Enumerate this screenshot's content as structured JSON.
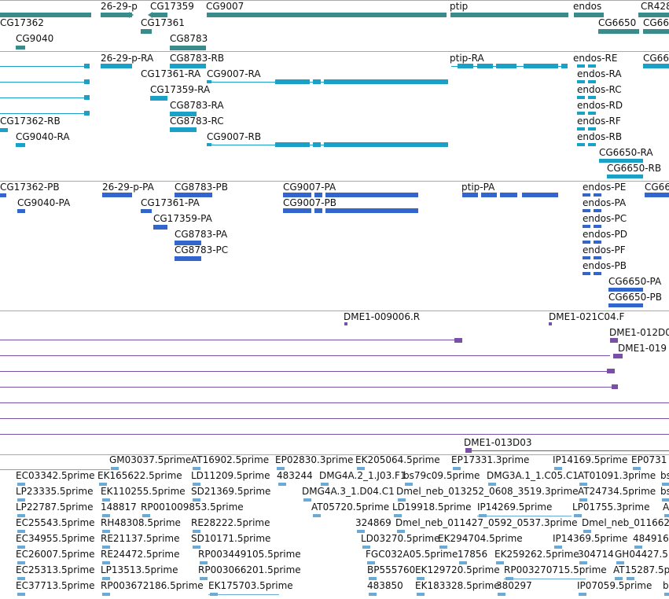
{
  "colors": {
    "gene": "#3a8c8c",
    "transcript": "#1ba1c7",
    "protein": "#3366cc",
    "clone": "#7a4fa8",
    "est": "#6aaad6",
    "separator": "#a9a9a9"
  },
  "tracks": {
    "genes": {
      "labels": [
        "26-29-p",
        "CG17359",
        "CG9007",
        "ptip",
        "endos",
        "CR428",
        "CG17362",
        "CG17361",
        "CG6650",
        "CG66",
        "CG9040",
        "CG8783"
      ]
    },
    "transcripts": {
      "labels": [
        "26-29-p-RA",
        "CG8783-RB",
        "ptip-RA",
        "endos-RE",
        "CG66",
        "CG17361-RA",
        "CG9007-RA",
        "endos-RA",
        "CG17359-RA",
        "endos-RC",
        "CG8783-RA",
        "endos-RD",
        "CG17362-RB",
        "CG8783-RC",
        "endos-RF",
        "CG9040-RA",
        "CG9007-RB",
        "endos-RB",
        "CG6650-RA",
        "CG6650-RB"
      ]
    },
    "proteins": {
      "labels": [
        "CG17362-PB",
        "26-29-p-PA",
        "CG8783-PB",
        "CG9007-PA",
        "ptip-PA",
        "endos-PE",
        "CG66",
        "CG9040-PA",
        "CG17361-PA",
        "CG9007-PB",
        "endos-PA",
        "CG17359-PA",
        "endos-PC",
        "CG8783-PA",
        "endos-PD",
        "CG8783-PC",
        "endos-PF",
        "endos-PB",
        "CG6650-PA",
        "CG6650-PB"
      ]
    },
    "clones": {
      "labels": [
        "DME1-009006.R",
        "DME1-021C04.F",
        "DME1-012D0",
        "DME1-019",
        "DME1-013D03"
      ]
    },
    "ests": {
      "labels": [
        "GM03037.5prime",
        "AT16902.5prime",
        "EP02830.3prime",
        "EK205064.5prime",
        "EP17331.3prime",
        "IP14169.5prime",
        "EP0731",
        "EC03342.5prime",
        "EK165622.5prime",
        "LD11209.5prime",
        "483244",
        "DMG4A.2_1.J03.F1",
        "bs79c09.5prime",
        "DMG3A.1_1.C05.C1",
        "AT01091.3prime",
        "bs",
        "LP23335.5prime",
        "EK110255.5prime",
        "SD21369.5prime",
        "DMG4A.3_1.D04.C1",
        "Dmel_neb_013252_0608_3519.3prime",
        "AT24734.5prime",
        "bs",
        "LP22787.5prime",
        "148817",
        "RP001009853.5prime",
        "AT05720.5prime",
        "LD19918.5prime",
        "IP14269.5prime",
        "LP01755.3prime",
        "A",
        "EC25543.5prime",
        "RH48308.5prime",
        "RE28222.5prime",
        "324869",
        "Dmel_neb_011427_0592_0537.3prime",
        "Dmel_neb_011662",
        "EC34955.5prime",
        "RE21137.5prime",
        "SD10171.5prime",
        "LD03270.5prime",
        "EK294704.5prime",
        "IP14369.5prime",
        "484916",
        "EC26007.5prime",
        "RE24472.5prime",
        "RP003449105.5prime",
        "FGC032A05.5prime",
        "17856",
        "EK259262.5prime",
        "304714",
        "GH04427.5",
        "EC25313.5prime",
        "LP13513.5prime",
        "RP003066201.5prime",
        "BP555760",
        "EK129720.5prime",
        "RP003270715.5prime",
        "AT",
        "15287.5p",
        "EC37713.5prime",
        "RP003672186.5prime",
        "EK175703.5prime",
        "483850",
        "EK183328.5prime",
        "380297",
        "IP07059.5prime",
        "b"
      ]
    }
  }
}
